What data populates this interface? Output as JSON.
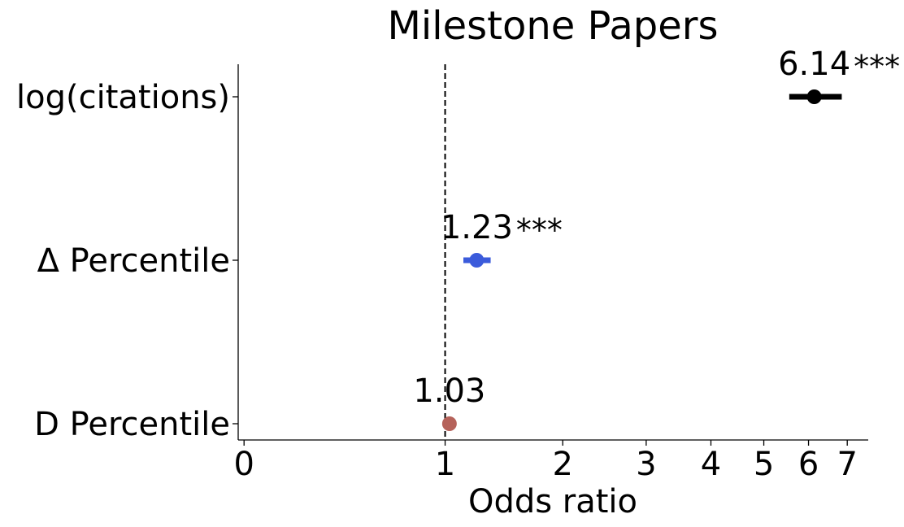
{
  "chart_data": {
    "type": "forest",
    "title": "Milestone Papers",
    "xlabel": "Odds ratio",
    "ylabel": "",
    "x_scale": "log(x+1)",
    "xlim": [
      -0.02,
      7.6
    ],
    "x_ticks": [
      0,
      1,
      2,
      3,
      4,
      5,
      6,
      7
    ],
    "x_tick_labels": [
      "0",
      "1",
      "2",
      "3",
      "4",
      "5",
      "6",
      "7"
    ],
    "reference_line": 1,
    "grid": false,
    "series": [
      {
        "label": "log(citations)",
        "value": 6.14,
        "ci_low": 5.55,
        "ci_high": 6.85,
        "annotation": "6.14",
        "significance": "***",
        "color": "#000000"
      },
      {
        "label": "Δ Percentile",
        "value": 1.23,
        "ci_low": 1.13,
        "ci_high": 1.34,
        "annotation": "1.23",
        "significance": "***",
        "color": "#3b5bdb"
      },
      {
        "label": "D Percentile",
        "value": 1.03,
        "ci_low": 0.99,
        "ci_high": 1.07,
        "annotation": "1.03",
        "significance": "",
        "color": "#b5625a"
      }
    ]
  }
}
